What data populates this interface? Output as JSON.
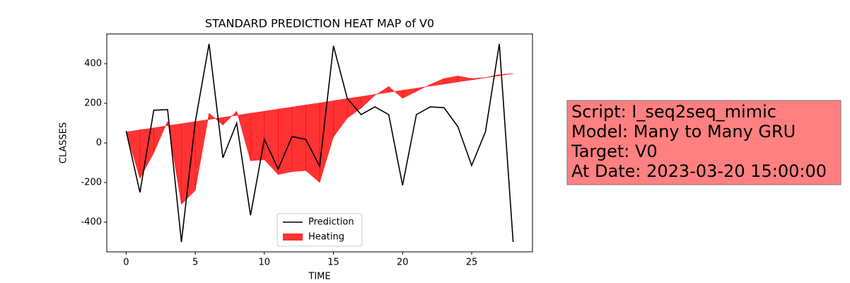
{
  "chart_data": {
    "type": "line",
    "title": "STANDARD PREDICTION HEAT MAP of V0",
    "x_label": "TIME",
    "y_label": "CLASSES",
    "x": [
      0,
      1,
      2,
      3,
      4,
      5,
      6,
      7,
      8,
      9,
      10,
      11,
      12,
      13,
      14,
      15,
      16,
      17,
      18,
      19,
      20,
      21,
      22,
      23,
      24,
      25,
      26,
      27,
      28
    ],
    "xlim": [
      -1.4,
      29.4
    ],
    "xticks": [
      0,
      5,
      10,
      15,
      20,
      25
    ],
    "ylim": [
      -550,
      550
    ],
    "yticks": [
      -400,
      -200,
      0,
      200,
      400
    ],
    "legend": "lower center",
    "series": [
      {
        "name": "Prediction",
        "color": "#000000",
        "values": [
          60,
          -250,
          165,
          168,
          -500,
          105,
          500,
          -75,
          100,
          -365,
          18,
          -132,
          32,
          18,
          -118,
          490,
          225,
          143,
          182,
          143,
          -214,
          143,
          182,
          178,
          82,
          -114,
          57,
          500,
          -500
        ]
      },
      {
        "name": "Heating",
        "color": "#ff0000",
        "opacity": 0.8,
        "values": [
          55,
          -180,
          -50,
          110,
          -310,
          -240,
          150,
          90,
          160,
          -90,
          -85,
          -160,
          -145,
          -140,
          -200,
          30,
          125,
          175,
          240,
          285,
          225,
          260,
          295,
          325,
          338,
          325,
          330,
          345,
          350
        ],
        "upper": [
          55,
          66,
          76,
          87,
          97,
          108,
          118,
          129,
          139,
          150,
          160,
          171,
          181,
          192,
          202,
          213,
          224,
          234,
          245,
          255,
          266,
          276,
          287,
          297,
          308,
          318,
          329,
          339,
          350
        ]
      }
    ]
  },
  "info_box": [
    "Script: I_seq2seq_mimic",
    "Model: Many to Many GRU",
    "Target: V0",
    "At Date: 2023-03-20 15:00:00"
  ]
}
